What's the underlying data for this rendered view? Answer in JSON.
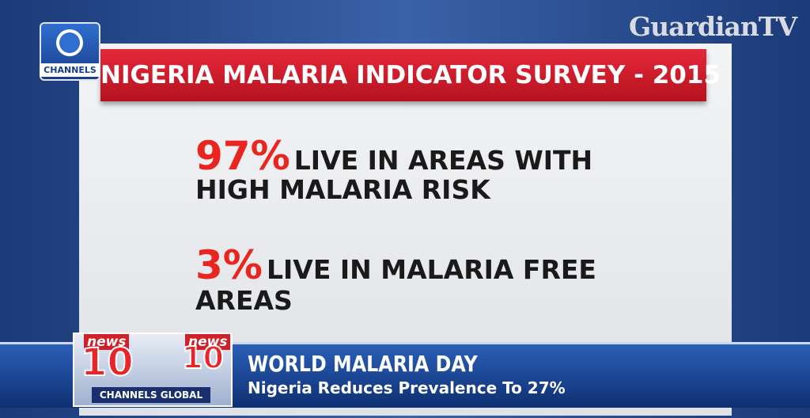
{
  "watermark": "GuardianTV",
  "channel_logo": "CHANNELS",
  "board": {
    "title": "NIGERIA MALARIA INDICATOR SURVEY - 2015",
    "stats": [
      {
        "value": "97%",
        "lines": [
          "LIVE IN AREAS WITH",
          "HIGH MALARIA RISK"
        ]
      },
      {
        "value": "3%",
        "lines": [
          "LIVE IN MALARIA FREE",
          "AREAS"
        ]
      }
    ]
  },
  "ticker": {
    "logo_word": "news",
    "logo_number": "10",
    "brand": "CHANNELS GLOBAL",
    "headline": "WORLD MALARIA DAY",
    "subheadline": "Nigeria Reduces Prevalence To 27%"
  }
}
